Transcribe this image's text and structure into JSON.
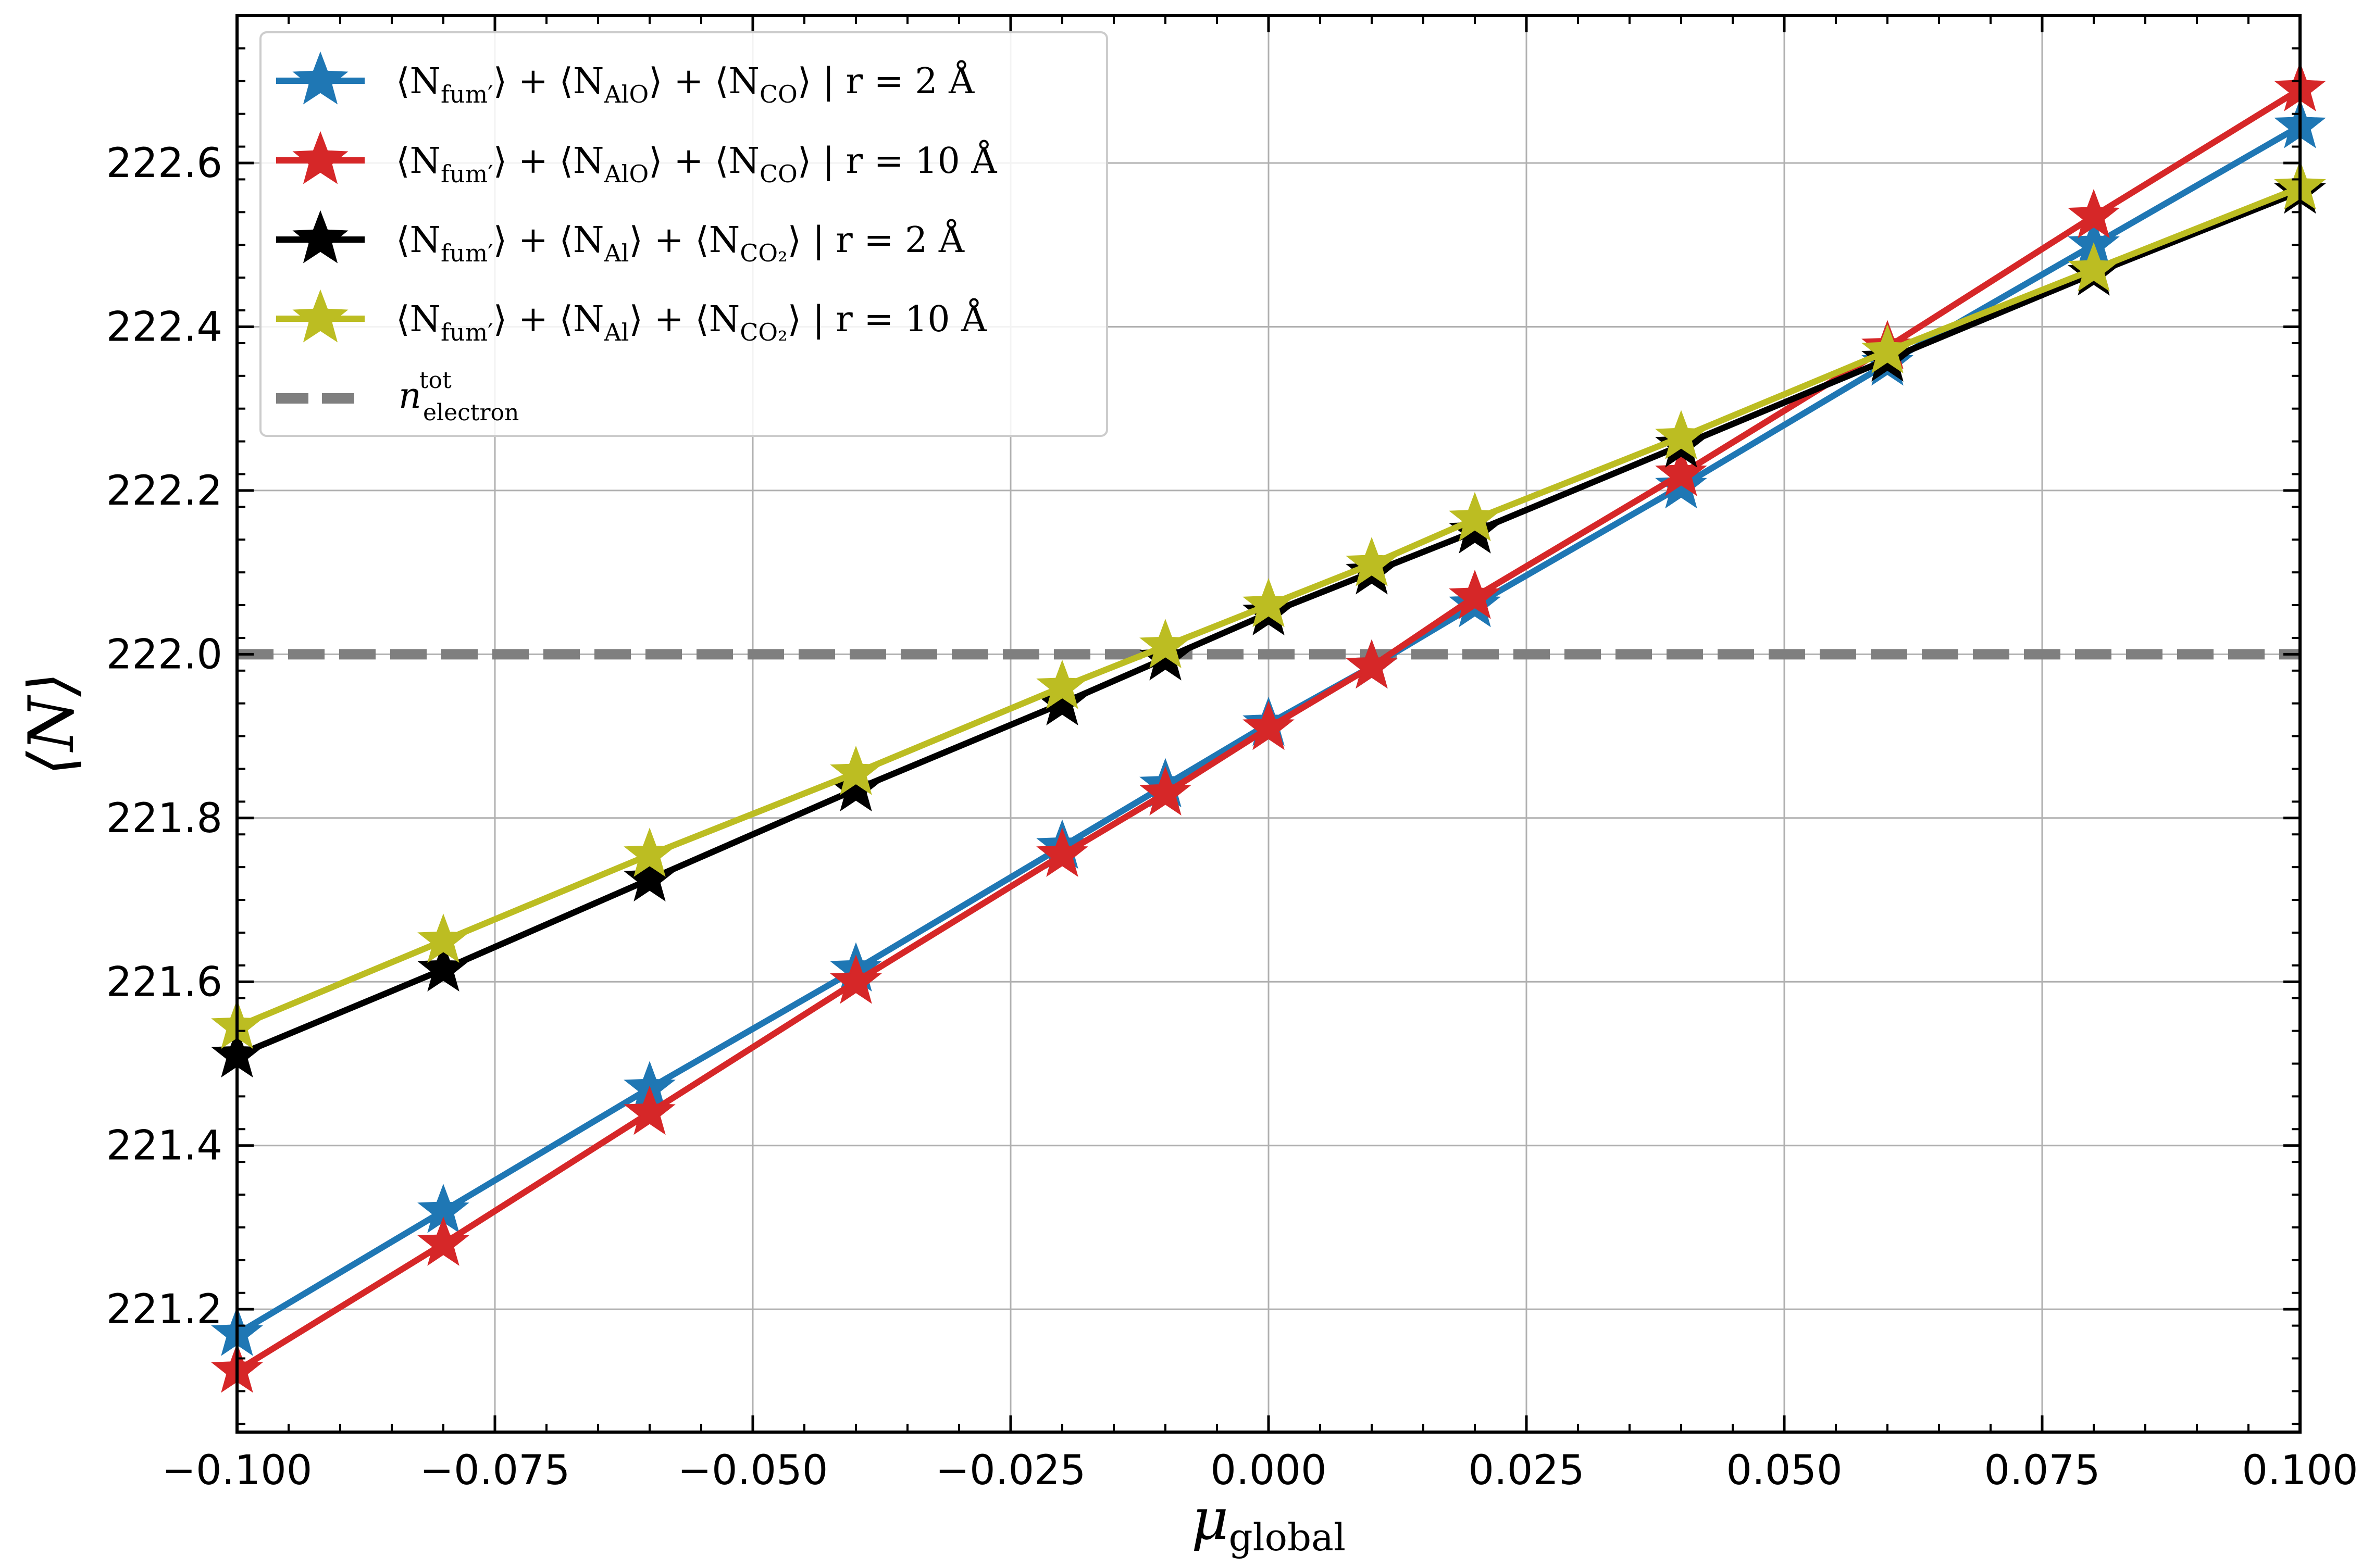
{
  "chart_data": {
    "type": "line",
    "xlabel_main": "μ",
    "xlabel_sub": "global",
    "ylabel": "⟨N⟩",
    "xlim": [
      -0.1,
      0.1
    ],
    "ylim": [
      221.05,
      222.78
    ],
    "xticks": [
      -0.1,
      -0.075,
      -0.05,
      -0.025,
      0.0,
      0.025,
      0.05,
      0.075,
      0.1
    ],
    "xtick_labels": [
      "−0.100",
      "−0.075",
      "−0.050",
      "−0.025",
      "0.000",
      "0.025",
      "0.050",
      "0.075",
      "0.100"
    ],
    "yticks": [
      221.2,
      221.4,
      221.6,
      221.8,
      222.0,
      222.2,
      222.4,
      222.6
    ],
    "ytick_labels": [
      "221.2",
      "221.4",
      "221.6",
      "221.8",
      "222.0",
      "222.2",
      "222.4",
      "222.6"
    ],
    "grid": true,
    "legend_position": "top-left",
    "x": [
      -0.1,
      -0.08,
      -0.06,
      -0.04,
      -0.02,
      -0.01,
      0.0,
      0.01,
      0.02,
      0.04,
      0.06,
      0.08,
      0.1
    ],
    "series": [
      {
        "name_parts": [
          "⟨N",
          "fum′",
          "⟩ + ⟨N",
          "AlO",
          "⟩ + ⟨N",
          "CO",
          "⟩ | r = 2 Å"
        ],
        "color": "#1f77b4",
        "values": [
          221.17,
          221.32,
          221.47,
          221.615,
          221.765,
          221.84,
          221.915,
          221.985,
          222.06,
          222.205,
          222.355,
          222.5,
          222.645
        ]
      },
      {
        "name_parts": [
          "⟨N",
          "fum′",
          "⟩ + ⟨N",
          "AlO",
          "⟩ + ⟨N",
          "CO",
          "⟩ | r = 10 Å"
        ],
        "color": "#d62728",
        "values": [
          221.125,
          221.28,
          221.44,
          221.6,
          221.755,
          221.83,
          221.91,
          221.985,
          222.07,
          222.22,
          222.375,
          222.535,
          222.69
        ]
      },
      {
        "name_parts": [
          "⟨N",
          "fum′",
          "⟩ + ⟨N",
          "Al",
          "⟩ + ⟨N",
          "CO₂",
          "⟩ | r = 2 Å"
        ],
        "color": "#000000",
        "values": [
          221.51,
          221.615,
          221.725,
          221.835,
          221.94,
          221.995,
          222.05,
          222.1,
          222.15,
          222.255,
          222.36,
          222.465,
          222.565
        ]
      },
      {
        "name_parts": [
          "⟨N",
          "fum′",
          "⟩ + ⟨N",
          "Al",
          "⟩ + ⟨N",
          "CO₂",
          "⟩ | r = 10 Å"
        ],
        "color": "#bcbd22",
        "values": [
          221.545,
          221.65,
          221.755,
          221.855,
          221.96,
          222.01,
          222.06,
          222.11,
          222.165,
          222.265,
          222.37,
          222.47,
          222.57
        ]
      }
    ],
    "reference_line": {
      "name_main": "n",
      "name_sup": "tot",
      "name_sub": "electron",
      "value": 222.0,
      "color": "#7f7f7f",
      "style": "dashed"
    }
  }
}
